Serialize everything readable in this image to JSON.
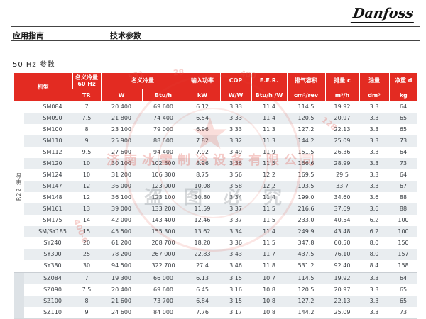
{
  "page": {
    "brand": "Danfoss",
    "nav_left": "应用指南",
    "nav_right": "技术参数",
    "section_title": "50 Hz 参数"
  },
  "colors": {
    "header_red": "#e32b22",
    "row_band": "#e9edf0",
    "group_strip_gray": "#dde2e6",
    "rule": "#444444"
  },
  "table": {
    "header": {
      "model": "机型",
      "c60_line1": "名义冷量",
      "c60_line2": "60 Hz",
      "c60_unit": "TR",
      "cooling": "名义冷量",
      "cooling_unit_w": "W",
      "cooling_unit_btuh": "Btu/h",
      "power": "输入功率",
      "power_unit": "kW",
      "cop": "COP",
      "cop_unit": "W/W",
      "eer": "E.E.R.",
      "eer_unit": "Btu/h /W",
      "displacement": "排气容积",
      "displacement_unit": "cm³/rev",
      "swept": "排量 c",
      "swept_unit": "m³/h",
      "oil": "油量",
      "oil_unit": "dm³",
      "weight": "净重 d",
      "weight_unit": "kg"
    },
    "groups": [
      {
        "label": "R22 单台",
        "span": 15
      },
      {
        "label": "",
        "span": 4
      }
    ],
    "rows": [
      {
        "model": "SM084",
        "tr": "7",
        "w": "20 400",
        "btuh": "69 600",
        "kw": "6.12",
        "cop": "3.33",
        "eer": "11.4",
        "disp": "114.5",
        "m3h": "19.92",
        "oil": "3.3",
        "kg": "64"
      },
      {
        "model": "SM090",
        "tr": "7.5",
        "w": "21 800",
        "btuh": "74 400",
        "kw": "6.54",
        "cop": "3.33",
        "eer": "11.4",
        "disp": "120.5",
        "m3h": "20.97",
        "oil": "3.3",
        "kg": "65"
      },
      {
        "model": "SM100",
        "tr": "8",
        "w": "23 100",
        "btuh": "79 000",
        "kw": "6.96",
        "cop": "3.33",
        "eer": "11.3",
        "disp": "127.2",
        "m3h": "22.13",
        "oil": "3.3",
        "kg": "65"
      },
      {
        "model": "SM110",
        "tr": "9",
        "w": "25 900",
        "btuh": "88 600",
        "kw": "7.82",
        "cop": "3.32",
        "eer": "11.3",
        "disp": "144.2",
        "m3h": "25.09",
        "oil": "3.3",
        "kg": "73"
      },
      {
        "model": "SM112",
        "tr": "9.5",
        "w": "27 600",
        "btuh": "94 400",
        "kw": "7.92",
        "cop": "3.49",
        "eer": "11.9",
        "disp": "151.5",
        "m3h": "26.36",
        "oil": "3.3",
        "kg": "64"
      },
      {
        "model": "SM120",
        "tr": "10",
        "w": "30 100",
        "btuh": "102 800",
        "kw": "8.96",
        "cop": "3.36",
        "eer": "11.5",
        "disp": "166.6",
        "m3h": "28.99",
        "oil": "3.3",
        "kg": "73"
      },
      {
        "model": "SM124",
        "tr": "10",
        "w": "31 200",
        "btuh": "106 300",
        "kw": "8.75",
        "cop": "3.56",
        "eer": "12.2",
        "disp": "169.5",
        "m3h": "29.5",
        "oil": "3.3",
        "kg": "64"
      },
      {
        "model": "SM147",
        "tr": "12",
        "w": "36 000",
        "btuh": "123 000",
        "kw": "10.08",
        "cop": "3.58",
        "eer": "12.2",
        "disp": "193.5",
        "m3h": "33.7",
        "oil": "3.3",
        "kg": "67"
      },
      {
        "model": "SM148",
        "tr": "12",
        "w": "36 100",
        "btuh": "123 100",
        "kw": "10.80",
        "cop": "3.34",
        "eer": "11.4",
        "disp": "199.0",
        "m3h": "34.60",
        "oil": "3.6",
        "kg": "88"
      },
      {
        "model": "SM161",
        "tr": "13",
        "w": "39 000",
        "btuh": "133 200",
        "kw": "11.59",
        "cop": "3.37",
        "eer": "11.5",
        "disp": "216.6",
        "m3h": "37.69",
        "oil": "3.6",
        "kg": "88"
      },
      {
        "model": "SM175",
        "tr": "14",
        "w": "42 000",
        "btuh": "143 400",
        "kw": "12.46",
        "cop": "3.37",
        "eer": "11.5",
        "disp": "233.0",
        "m3h": "40.54",
        "oil": "6.2",
        "kg": "100"
      },
      {
        "model": "SM/SY185",
        "tr": "15",
        "w": "45 500",
        "btuh": "155 300",
        "kw": "13.62",
        "cop": "3.34",
        "eer": "11.4",
        "disp": "249.9",
        "m3h": "43.48",
        "oil": "6.2",
        "kg": "100"
      },
      {
        "model": "SY240",
        "tr": "20",
        "w": "61 200",
        "btuh": "208 700",
        "kw": "18.20",
        "cop": "3.36",
        "eer": "11.5",
        "disp": "347.8",
        "m3h": "60.50",
        "oil": "8.0",
        "kg": "150"
      },
      {
        "model": "SY300",
        "tr": "25",
        "w": "78 200",
        "btuh": "267 000",
        "kw": "22.83",
        "cop": "3.43",
        "eer": "11.7",
        "disp": "437.5",
        "m3h": "76.10",
        "oil": "8.0",
        "kg": "157"
      },
      {
        "model": "SY380",
        "tr": "30",
        "w": "94 500",
        "btuh": "322 700",
        "kw": "27.4",
        "cop": "3.46",
        "eer": "11.8",
        "disp": "531.2",
        "m3h": "92.40",
        "oil": "8.4",
        "kg": "158"
      },
      {
        "model": "SZ084",
        "tr": "7",
        "w": "19 300",
        "btuh": "66 000",
        "kw": "6.13",
        "cop": "3.15",
        "eer": "10.7",
        "disp": "114.5",
        "m3h": "19.92",
        "oil": "3.3",
        "kg": "64"
      },
      {
        "model": "SZ090",
        "tr": "7.5",
        "w": "20 400",
        "btuh": "69 600",
        "kw": "6.45",
        "cop": "3.16",
        "eer": "10.8",
        "disp": "120.5",
        "m3h": "20.97",
        "oil": "3.3",
        "kg": "65"
      },
      {
        "model": "SZ100",
        "tr": "8",
        "w": "21 600",
        "btuh": "73 700",
        "kw": "6.84",
        "cop": "3.15",
        "eer": "10.8",
        "disp": "127.2",
        "m3h": "22.13",
        "oil": "3.3",
        "kg": "65"
      },
      {
        "model": "SZ110",
        "tr": "9",
        "w": "24 600",
        "btuh": "84 000",
        "kw": "7.76",
        "cop": "3.17",
        "eer": "10.8",
        "disp": "144.2",
        "m3h": "25.09",
        "oil": "3.3",
        "kg": "73"
      }
    ]
  },
  "watermark": {
    "company": "济南冰雪制冷设备有限公司",
    "notice": "盗图必究",
    "star": "★",
    "number_fragments": [
      "531",
      "28",
      "400",
      "400-0",
      "128"
    ]
  }
}
